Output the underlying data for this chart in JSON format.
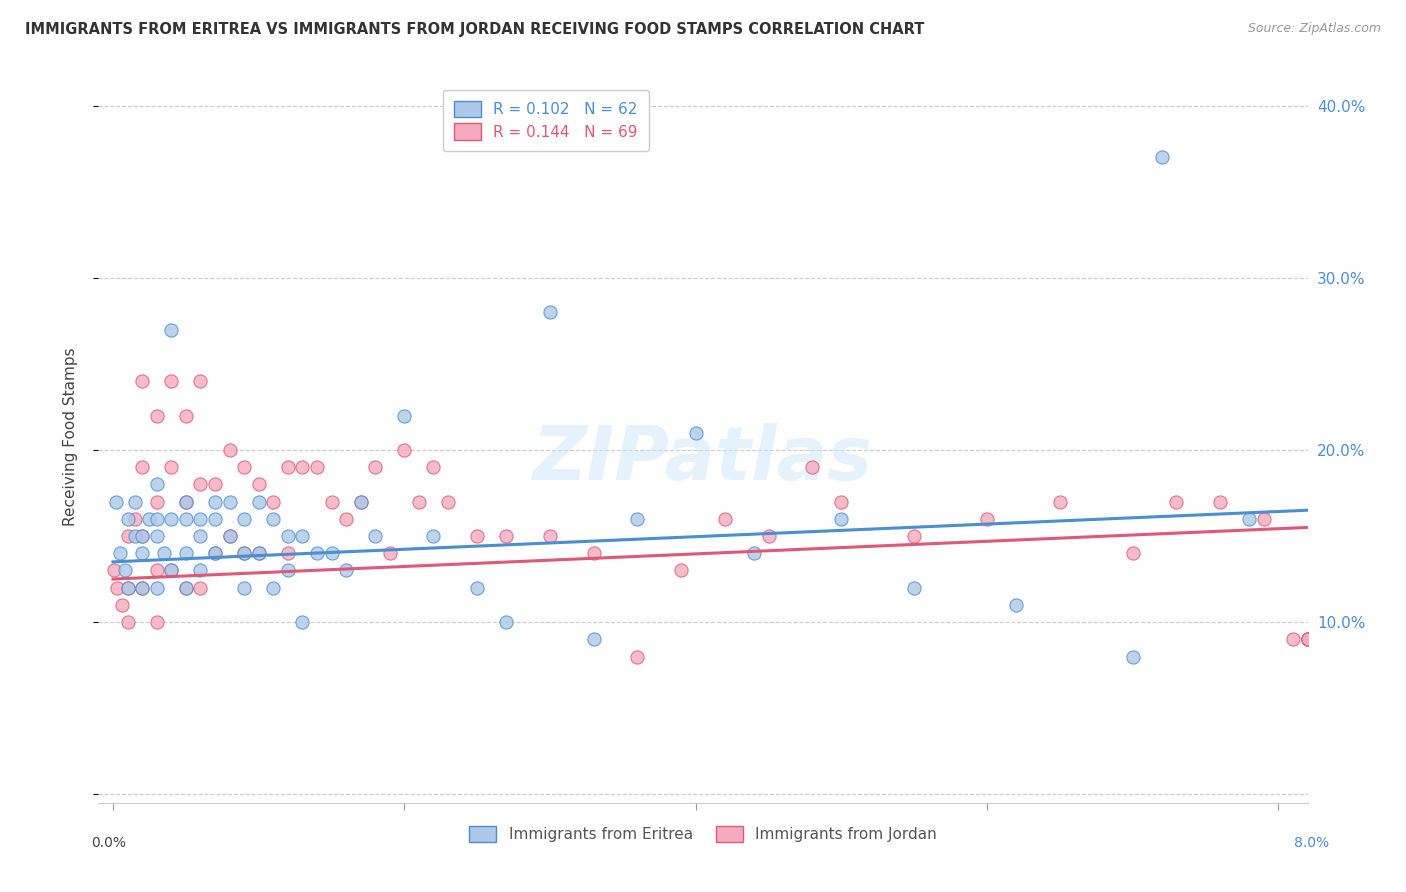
{
  "title": "IMMIGRANTS FROM ERITREA VS IMMIGRANTS FROM JORDAN RECEIVING FOOD STAMPS CORRELATION CHART",
  "source": "Source: ZipAtlas.com",
  "ylabel": "Receiving Food Stamps",
  "ytick_labels": [
    "",
    "10.0%",
    "20.0%",
    "30.0%",
    "40.0%"
  ],
  "yticks": [
    0.0,
    0.1,
    0.2,
    0.3,
    0.4
  ],
  "xtick_labels": [
    "0.0%",
    "",
    "",
    "",
    "8.0%"
  ],
  "xticks": [
    0.0,
    0.02,
    0.04,
    0.06,
    0.08
  ],
  "xlim": [
    -0.001,
    0.082
  ],
  "ylim": [
    -0.005,
    0.42
  ],
  "blue_R": 0.102,
  "blue_N": 62,
  "pink_R": 0.144,
  "pink_N": 69,
  "blue_color": "#adc8e8",
  "pink_color": "#f5aabf",
  "blue_line_color": "#4a8fd4",
  "pink_line_color": "#e05878",
  "legend_blue_label": "R = 0.102   N = 62",
  "legend_pink_label": "R = 0.144   N = 69",
  "legend_bottom_blue": "Immigrants from Eritrea",
  "legend_bottom_pink": "Immigrants from Jordan",
  "watermark": "ZIPatlas",
  "blue_scatter_x": [
    0.0002,
    0.0005,
    0.0008,
    0.001,
    0.001,
    0.0015,
    0.0015,
    0.002,
    0.002,
    0.002,
    0.0025,
    0.003,
    0.003,
    0.003,
    0.003,
    0.0035,
    0.004,
    0.004,
    0.004,
    0.005,
    0.005,
    0.005,
    0.005,
    0.006,
    0.006,
    0.006,
    0.007,
    0.007,
    0.007,
    0.008,
    0.008,
    0.009,
    0.009,
    0.009,
    0.01,
    0.01,
    0.011,
    0.011,
    0.012,
    0.012,
    0.013,
    0.013,
    0.014,
    0.015,
    0.016,
    0.017,
    0.018,
    0.02,
    0.022,
    0.025,
    0.027,
    0.03,
    0.033,
    0.036,
    0.04,
    0.044,
    0.05,
    0.055,
    0.062,
    0.07,
    0.072,
    0.078
  ],
  "blue_scatter_y": [
    0.17,
    0.14,
    0.13,
    0.16,
    0.12,
    0.17,
    0.15,
    0.15,
    0.14,
    0.12,
    0.16,
    0.18,
    0.16,
    0.15,
    0.12,
    0.14,
    0.27,
    0.16,
    0.13,
    0.17,
    0.16,
    0.14,
    0.12,
    0.16,
    0.15,
    0.13,
    0.17,
    0.16,
    0.14,
    0.17,
    0.15,
    0.16,
    0.14,
    0.12,
    0.17,
    0.14,
    0.16,
    0.12,
    0.15,
    0.13,
    0.15,
    0.1,
    0.14,
    0.14,
    0.13,
    0.17,
    0.15,
    0.22,
    0.15,
    0.12,
    0.1,
    0.28,
    0.09,
    0.16,
    0.21,
    0.14,
    0.16,
    0.12,
    0.11,
    0.08,
    0.37,
    0.16
  ],
  "pink_scatter_x": [
    0.0001,
    0.0003,
    0.0006,
    0.001,
    0.001,
    0.001,
    0.0015,
    0.002,
    0.002,
    0.002,
    0.002,
    0.003,
    0.003,
    0.003,
    0.003,
    0.004,
    0.004,
    0.004,
    0.005,
    0.005,
    0.005,
    0.006,
    0.006,
    0.006,
    0.007,
    0.007,
    0.008,
    0.008,
    0.009,
    0.009,
    0.01,
    0.01,
    0.011,
    0.012,
    0.012,
    0.013,
    0.014,
    0.015,
    0.016,
    0.017,
    0.018,
    0.019,
    0.02,
    0.021,
    0.022,
    0.023,
    0.025,
    0.027,
    0.03,
    0.033,
    0.036,
    0.039,
    0.042,
    0.045,
    0.048,
    0.05,
    0.055,
    0.06,
    0.065,
    0.07,
    0.073,
    0.076,
    0.079,
    0.081,
    0.082,
    0.082,
    0.082,
    0.082,
    0.082
  ],
  "pink_scatter_y": [
    0.13,
    0.12,
    0.11,
    0.15,
    0.12,
    0.1,
    0.16,
    0.24,
    0.19,
    0.15,
    0.12,
    0.22,
    0.17,
    0.13,
    0.1,
    0.24,
    0.19,
    0.13,
    0.22,
    0.17,
    0.12,
    0.24,
    0.18,
    0.12,
    0.18,
    0.14,
    0.2,
    0.15,
    0.19,
    0.14,
    0.18,
    0.14,
    0.17,
    0.19,
    0.14,
    0.19,
    0.19,
    0.17,
    0.16,
    0.17,
    0.19,
    0.14,
    0.2,
    0.17,
    0.19,
    0.17,
    0.15,
    0.15,
    0.15,
    0.14,
    0.08,
    0.13,
    0.16,
    0.15,
    0.19,
    0.17,
    0.15,
    0.16,
    0.17,
    0.14,
    0.17,
    0.17,
    0.16,
    0.09,
    0.09,
    0.09,
    0.09,
    0.09,
    0.09
  ]
}
